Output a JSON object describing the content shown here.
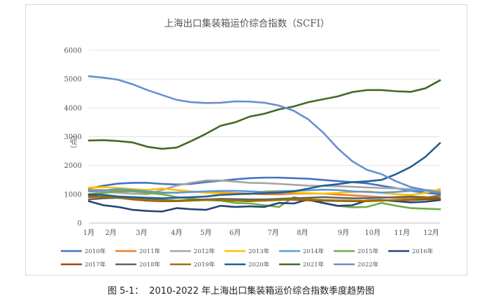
{
  "caption": {
    "label": "图 5-1：",
    "text": "2010-2022 年上海出口集装箱运价综合指数季度趋势图"
  },
  "chart_data": {
    "type": "line",
    "title": "上海出口集装箱运价综合指数（SCFI）",
    "xlabel": "",
    "ylabel": "（点）",
    "ylim": [
      0,
      6000
    ],
    "yticks": [
      0,
      1000,
      2000,
      3000,
      4000,
      5000,
      6000
    ],
    "x_range": [
      0,
      12
    ],
    "xticks": [
      {
        "label": "1月",
        "pos": 0
      },
      {
        "label": "2月",
        "pos": 0.75
      },
      {
        "label": "3月",
        "pos": 1.8
      },
      {
        "label": "4月",
        "pos": 3.0
      },
      {
        "label": "5月",
        "pos": 4.0
      },
      {
        "label": "6月",
        "pos": 5.0
      },
      {
        "label": "7月",
        "pos": 6.3
      },
      {
        "label": "8月",
        "pos": 7.3
      },
      {
        "label": "9月",
        "pos": 8.7
      },
      {
        "label": "10月",
        "pos": 9.7
      },
      {
        "label": "11月",
        "pos": 10.7
      },
      {
        "label": "12月",
        "pos": 11.7
      }
    ],
    "legend_position": "bottom",
    "series": [
      {
        "name": "2010年",
        "color": "#4472c4",
        "x": [
          0,
          0.5,
          1,
          1.5,
          2,
          2.5,
          3,
          3.5,
          4,
          4.5,
          5,
          5.5,
          6,
          6.5,
          7,
          7.5,
          8,
          8.5,
          9,
          9.5,
          10,
          10.5,
          11,
          11.5,
          12
        ],
        "values": [
          1200,
          1300,
          1370,
          1400,
          1400,
          1360,
          1340,
          1360,
          1420,
          1470,
          1520,
          1560,
          1580,
          1580,
          1560,
          1540,
          1500,
          1460,
          1420,
          1380,
          1300,
          1210,
          1120,
          1060,
          1000
        ]
      },
      {
        "name": "2011年",
        "color": "#ed7d31",
        "x": [
          0,
          0.5,
          1,
          1.5,
          2,
          2.5,
          3,
          3.5,
          4,
          4.5,
          5,
          5.5,
          6,
          6.5,
          7,
          7.5,
          8,
          8.5,
          9,
          9.5,
          10,
          10.5,
          11,
          11.5,
          12
        ],
        "values": [
          1150,
          1150,
          1120,
          1100,
          1080,
          1050,
          1060,
          1080,
          1080,
          1060,
          1040,
          1020,
          1000,
          1000,
          1020,
          1030,
          1020,
          990,
          960,
          930,
          900,
          880,
          860,
          840,
          820
        ]
      },
      {
        "name": "2012年",
        "color": "#a5a5a5",
        "x": [
          0,
          0.5,
          1,
          1.5,
          2,
          2.5,
          3,
          3.5,
          4,
          4.5,
          5,
          5.5,
          6,
          6.5,
          7,
          7.5,
          8,
          8.5,
          9,
          9.5,
          10,
          10.5,
          11,
          11.5,
          12
        ],
        "values": [
          1100,
          1080,
          1060,
          1020,
          1000,
          1150,
          1300,
          1400,
          1480,
          1480,
          1440,
          1400,
          1390,
          1360,
          1330,
          1300,
          1290,
          1280,
          1260,
          1240,
          1220,
          1200,
          1180,
          1150,
          1120
        ]
      },
      {
        "name": "2013年",
        "color": "#ffc000",
        "x": [
          0,
          0.5,
          1,
          1.5,
          2,
          2.5,
          3,
          3.5,
          4,
          4.5,
          5,
          5.5,
          6,
          6.5,
          7,
          7.5,
          8,
          8.5,
          9,
          9.5,
          10,
          10.5,
          11,
          11.5,
          12
        ],
        "values": [
          1230,
          1250,
          1220,
          1180,
          1150,
          1200,
          1150,
          1100,
          1060,
          1030,
          1020,
          1000,
          1100,
          1120,
          1060,
          1040,
          1020,
          1050,
          1080,
          1100,
          1060,
          1000,
          980,
          1050,
          1180
        ]
      },
      {
        "name": "2014年",
        "color": "#5b9bd5",
        "x": [
          0,
          0.5,
          1,
          1.5,
          2,
          2.5,
          3,
          3.5,
          4,
          4.5,
          5,
          5.5,
          6,
          6.5,
          7,
          7.5,
          8,
          8.5,
          9,
          9.5,
          10,
          10.5,
          11,
          11.5,
          12
        ],
        "values": [
          1100,
          1130,
          1180,
          1150,
          1100,
          1060,
          1060,
          1080,
          1100,
          1120,
          1120,
          1100,
          1080,
          1100,
          1120,
          1140,
          1160,
          1150,
          1100,
          1080,
          1060,
          1080,
          1120,
          1140,
          1060
        ]
      },
      {
        "name": "2015年",
        "color": "#70ad47",
        "x": [
          0,
          0.5,
          1,
          1.5,
          2,
          2.5,
          3,
          3.5,
          4,
          4.5,
          5,
          5.5,
          6,
          6.5,
          7,
          7.5,
          8,
          8.5,
          9,
          9.5,
          10,
          10.5,
          11,
          11.5,
          12
        ],
        "values": [
          1000,
          1050,
          1100,
          1100,
          1050,
          1000,
          900,
          850,
          800,
          780,
          700,
          680,
          620,
          560,
          900,
          800,
          700,
          600,
          550,
          560,
          700,
          600,
          520,
          500,
          480
        ]
      },
      {
        "name": "2016年",
        "color": "#264478",
        "x": [
          0,
          0.5,
          1,
          1.5,
          2,
          2.5,
          3,
          3.5,
          4,
          4.5,
          5,
          5.5,
          6,
          6.5,
          7,
          7.5,
          8,
          8.5,
          9,
          9.5,
          10,
          10.5,
          11,
          11.5,
          12
        ],
        "values": [
          760,
          620,
          560,
          460,
          420,
          400,
          520,
          480,
          460,
          600,
          560,
          580,
          560,
          700,
          680,
          820,
          700,
          600,
          620,
          780,
          800,
          760,
          720,
          740,
          800
        ]
      },
      {
        "name": "2017年",
        "color": "#9e480e",
        "x": [
          0,
          0.5,
          1,
          1.5,
          2,
          2.5,
          3,
          3.5,
          4,
          4.5,
          5,
          5.5,
          6,
          6.5,
          7,
          7.5,
          8,
          8.5,
          9,
          9.5,
          10,
          10.5,
          11,
          11.5,
          12
        ],
        "values": [
          960,
          900,
          880,
          820,
          780,
          760,
          760,
          800,
          820,
          800,
          780,
          760,
          800,
          830,
          810,
          790,
          780,
          770,
          760,
          760,
          780,
          800,
          800,
          820,
          840
        ]
      },
      {
        "name": "2018年",
        "color": "#636363",
        "x": [
          0,
          0.5,
          1,
          1.5,
          2,
          2.5,
          3,
          3.5,
          4,
          4.5,
          5,
          5.5,
          6,
          6.5,
          7,
          7.5,
          8,
          8.5,
          9,
          9.5,
          10,
          10.5,
          11,
          11.5,
          12
        ],
        "values": [
          820,
          860,
          880,
          860,
          820,
          800,
          780,
          800,
          820,
          840,
          830,
          820,
          820,
          840,
          860,
          880,
          900,
          880,
          860,
          860,
          880,
          900,
          920,
          900,
          880
        ]
      },
      {
        "name": "2019年",
        "color": "#997300",
        "x": [
          0,
          0.5,
          1,
          1.5,
          2,
          2.5,
          3,
          3.5,
          4,
          4.5,
          5,
          5.5,
          6,
          6.5,
          7,
          7.5,
          8,
          8.5,
          9,
          9.5,
          10,
          10.5,
          11,
          11.5,
          12
        ],
        "values": [
          900,
          920,
          880,
          840,
          800,
          780,
          760,
          780,
          800,
          800,
          780,
          760,
          780,
          800,
          820,
          820,
          800,
          790,
          780,
          770,
          790,
          800,
          820,
          880,
          960
        ]
      },
      {
        "name": "2020年",
        "color": "#255e91",
        "x": [
          0,
          0.5,
          1,
          1.5,
          2,
          2.5,
          3,
          3.5,
          4,
          4.5,
          5,
          5.5,
          6,
          6.5,
          7,
          7.5,
          8,
          8.5,
          9,
          9.5,
          10,
          10.5,
          11,
          11.5,
          12
        ],
        "values": [
          1000,
          980,
          920,
          900,
          880,
          860,
          880,
          900,
          920,
          980,
          1000,
          1020,
          1040,
          1060,
          1100,
          1200,
          1300,
          1350,
          1420,
          1450,
          1500,
          1700,
          1950,
          2300,
          2780
        ]
      },
      {
        "name": "2021年",
        "color": "#43682b",
        "x": [
          0,
          0.5,
          1,
          1.5,
          2,
          2.5,
          3,
          3.5,
          4,
          4.5,
          5,
          5.5,
          6,
          6.5,
          7,
          7.5,
          8,
          8.5,
          9,
          9.5,
          10,
          10.5,
          11,
          11.5,
          12
        ],
        "values": [
          2870,
          2880,
          2850,
          2800,
          2650,
          2580,
          2620,
          2850,
          3100,
          3380,
          3500,
          3700,
          3800,
          3950,
          4050,
          4200,
          4300,
          4400,
          4550,
          4620,
          4620,
          4580,
          4560,
          4680,
          4960
        ]
      },
      {
        "name": "2022年",
        "color": "#698ed0",
        "x": [
          0,
          0.5,
          1,
          1.5,
          2,
          2.5,
          3,
          3.5,
          4,
          4.5,
          5,
          5.5,
          6,
          6.5,
          7,
          7.5,
          8,
          8.5,
          9,
          9.5,
          10,
          10.5,
          11,
          11.5,
          12
        ],
        "values": [
          5100,
          5050,
          4980,
          4820,
          4620,
          4450,
          4280,
          4200,
          4170,
          4180,
          4230,
          4220,
          4180,
          4080,
          3900,
          3600,
          3150,
          2600,
          2150,
          1850,
          1700,
          1450,
          1250,
          1150,
          1050
        ]
      }
    ]
  }
}
